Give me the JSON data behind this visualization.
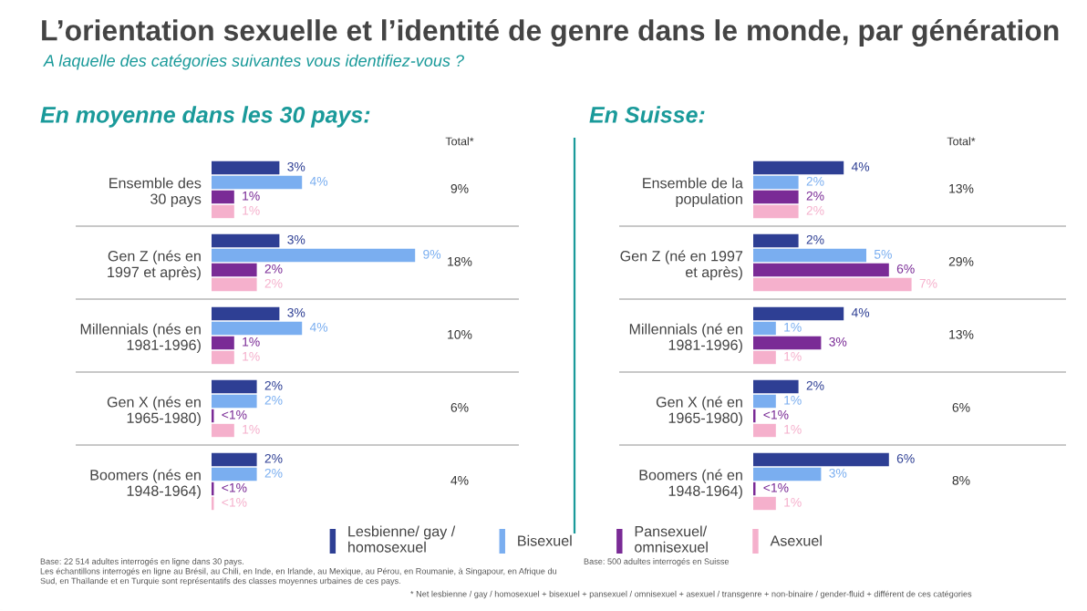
{
  "chart_data": [
    {
      "type": "bar",
      "orientation": "horizontal",
      "title": "L’orientation sexuelle et l’identité de genre dans le monde, par génération",
      "subtitle": "A laquelle des catégories suivantes vous identifiez-vous ?",
      "categories": [
        "Ensemble des\n30 pays",
        "Gen Z (nés en\n1997 et après)",
        "Millennials (nés en\n1981-1996)",
        "Gen X (nés en\n1965-1980)",
        "Boomers (nés en\n1948-1964)"
      ],
      "series": [
        {
          "name": "Lesbienne/ gay /\nhomosexuel",
          "color": "#2e3f94",
          "values": [
            3,
            3,
            3,
            2,
            2
          ],
          "value_labels": [
            "3%",
            "3%",
            "3%",
            "2%",
            "2%"
          ]
        },
        {
          "name": "Bisexuel",
          "color": "#7aaef0",
          "values": [
            4,
            9,
            4,
            2,
            2
          ],
          "value_labels": [
            "4%",
            "9%",
            "4%",
            "2%",
            "2%"
          ]
        },
        {
          "name": "Pansexuel/\nomnisexuel",
          "color": "#7a2b96",
          "values": [
            1,
            2,
            1,
            0.1,
            0.1
          ],
          "value_labels": [
            "1%",
            "2%",
            "1%",
            "<1%",
            "<1%"
          ]
        },
        {
          "name": "Asexuel",
          "color": "#f5b0cc",
          "values": [
            1,
            2,
            1,
            1,
            0.1
          ],
          "value_labels": [
            "1%",
            "2%",
            "1%",
            "1%",
            "<1%"
          ]
        }
      ],
      "legend": "bottom",
      "annotations": [
        "En moyenne dans les 30 pays:",
        "Total*",
        "9%",
        "18%",
        "10%",
        "6%",
        "4%",
        "Base: 22 514 adultes interrogés en ligne dans 30 pays.\nLes échantillons interrogés en ligne au Brésil, au Chili, en Inde, en Irlande, au Mexique, au Pérou, en Roumanie, à Singapour, en Afrique du\nSud, en Thaïlande et en Turquie sont représentatifs des classes moyennes urbaines de ces pays."
      ]
    },
    {
      "type": "bar",
      "orientation": "horizontal",
      "categories": [
        "Ensemble de la\npopulation",
        "Gen Z (né en 1997\net après)",
        "Millennials (né en\n1981-1996)",
        "Gen X (né en\n1965-1980)",
        "Boomers (né en\n1948-1964)"
      ],
      "series": [
        {
          "color": "#2e3f94",
          "values": [
            4,
            2,
            4,
            2,
            6
          ],
          "value_labels": [
            "4%",
            "2%",
            "4%",
            "2%",
            "6%"
          ]
        },
        {
          "color": "#7aaef0",
          "values": [
            2,
            5,
            1,
            1,
            3
          ],
          "value_labels": [
            "2%",
            "5%",
            "1%",
            "1%",
            "3%"
          ]
        },
        {
          "color": "#7a2b96",
          "values": [
            2,
            6,
            3,
            0.1,
            0.1
          ],
          "value_labels": [
            "2%",
            "6%",
            "3%",
            "<1%",
            "<1%"
          ]
        },
        {
          "color": "#f5b0cc",
          "values": [
            2,
            7,
            1,
            1,
            1
          ],
          "value_labels": [
            "2%",
            "7%",
            "1%",
            "1%",
            "1%"
          ]
        }
      ],
      "annotations": [
        "En Suisse:",
        "Total*",
        "13%",
        "29%",
        "13%",
        "6%",
        "8%",
        "Base: 500 adultes interrogés en Suisse",
        "* Net lesbienne / gay / homosexuel + bisexuel + pansexuel / omnisexuel + asexuel / transgenre + non-binaire / gender-fluid + différent de ces catégories"
      ]
    }
  ]
}
